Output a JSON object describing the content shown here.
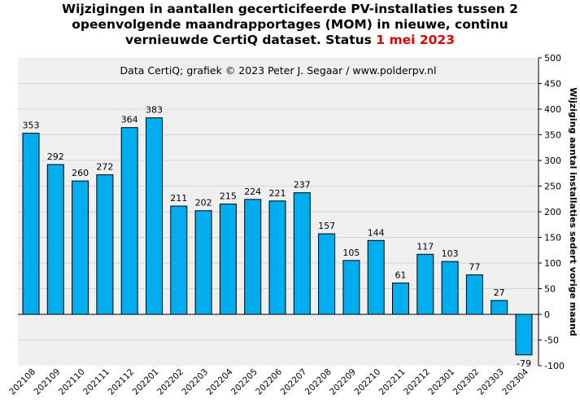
{
  "chart_data": {
    "type": "bar",
    "title": {
      "line1": "Wijzigingen in aantallen gecerticifeerde PV-installaties tussen 2",
      "line2": "opeenvolgende maandrapportages (MOM) in nieuwe, continu",
      "line3_prefix": "vernieuwde CertiQ dataset. Status ",
      "line3_highlight": "1 mei 2023"
    },
    "subtitle": "Data CertiQ; grafiek © 2023 Peter J. Segaar / www.polderpv.nl",
    "xlabel": "",
    "ylabel": "Wijziging aantal installaties sedert vorige maand",
    "ylim": [
      -100,
      500
    ],
    "yticks": [
      -100,
      -50,
      0,
      50,
      100,
      150,
      200,
      250,
      300,
      350,
      400,
      450,
      500
    ],
    "categories": [
      "202108",
      "202109",
      "202110",
      "202111",
      "202112",
      "202201",
      "202202",
      "202203",
      "202204",
      "202205",
      "202206",
      "202207",
      "202208",
      "202209",
      "202210",
      "202211",
      "202212",
      "202301",
      "202302",
      "202303",
      "202304"
    ],
    "values": [
      353,
      292,
      260,
      272,
      364,
      383,
      211,
      202,
      215,
      224,
      221,
      237,
      157,
      105,
      144,
      61,
      117,
      103,
      77,
      27,
      -79
    ],
    "grid": true,
    "colors": {
      "bar": "#00adef",
      "plot_bg": "#f0f0f0",
      "grid": "#d4d4d4",
      "highlight": "#e00000"
    }
  }
}
